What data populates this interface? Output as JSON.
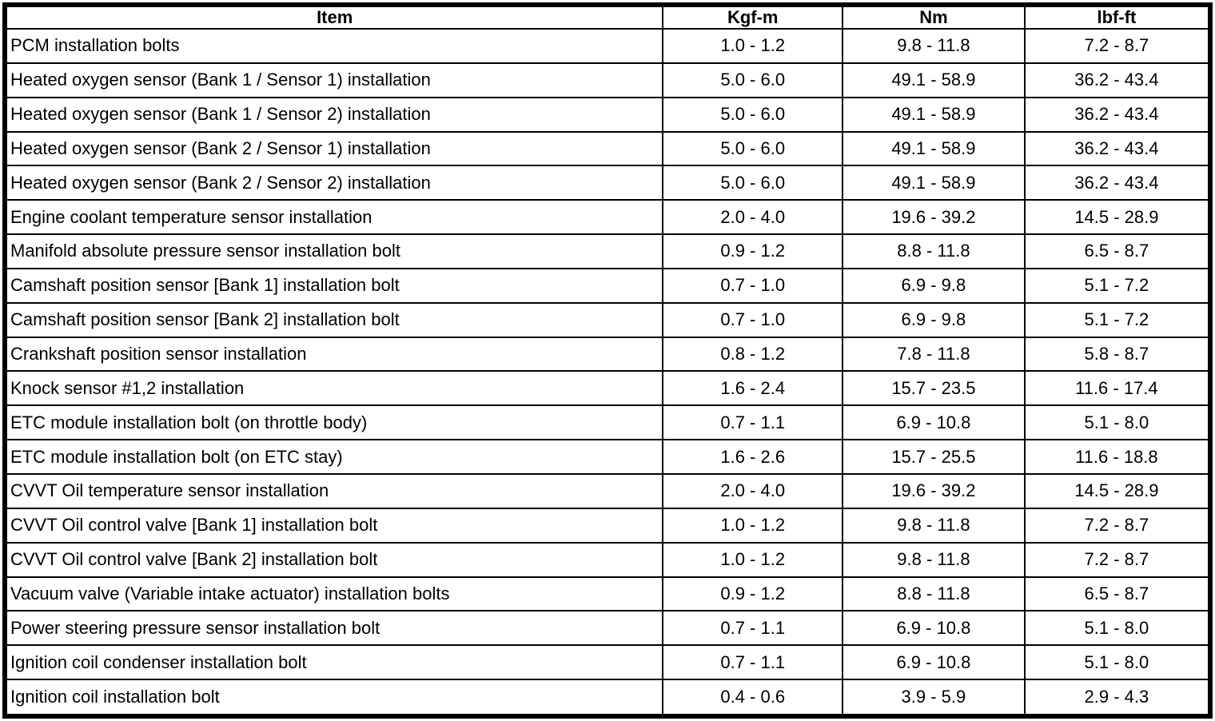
{
  "table": {
    "headers": [
      "Item",
      "Kgf-m",
      "Nm",
      "lbf-ft"
    ],
    "rows": [
      [
        "PCM installation bolts",
        "1.0 - 1.2",
        "9.8 - 11.8",
        "7.2 - 8.7"
      ],
      [
        "Heated oxygen sensor (Bank 1 / Sensor 1) installation",
        "5.0 - 6.0",
        "49.1 - 58.9",
        "36.2 - 43.4"
      ],
      [
        "Heated oxygen sensor (Bank 1 / Sensor 2) installation",
        "5.0 - 6.0",
        "49.1 - 58.9",
        "36.2 - 43.4"
      ],
      [
        "Heated oxygen sensor (Bank 2 / Sensor 1) installation",
        "5.0 - 6.0",
        "49.1 - 58.9",
        "36.2 - 43.4"
      ],
      [
        "Heated oxygen sensor (Bank 2 / Sensor 2) installation",
        "5.0 - 6.0",
        "49.1 - 58.9",
        "36.2 - 43.4"
      ],
      [
        "Engine coolant temperature sensor installation",
        "2.0 - 4.0",
        "19.6 - 39.2",
        "14.5 - 28.9"
      ],
      [
        "Manifold absolute pressure sensor installation bolt",
        "0.9 - 1.2",
        "8.8 - 11.8",
        "6.5 - 8.7"
      ],
      [
        "Camshaft position sensor [Bank 1] installation bolt",
        "0.7 - 1.0",
        "6.9 - 9.8",
        "5.1 - 7.2"
      ],
      [
        "Camshaft position sensor [Bank 2] installation bolt",
        "0.7 - 1.0",
        "6.9 - 9.8",
        "5.1 - 7.2"
      ],
      [
        "Crankshaft position sensor installation",
        "0.8 - 1.2",
        "7.8 - 11.8",
        "5.8 - 8.7"
      ],
      [
        "Knock sensor #1,2 installation",
        "1.6 - 2.4",
        "15.7 - 23.5",
        "11.6 - 17.4"
      ],
      [
        "ETC module installation bolt (on throttle body)",
        "0.7 - 1.1",
        "6.9 - 10.8",
        "5.1 - 8.0"
      ],
      [
        "ETC module installation bolt (on ETC stay)",
        "1.6 - 2.6",
        "15.7 - 25.5",
        "11.6 - 18.8"
      ],
      [
        "CVVT Oil temperature sensor installation",
        "2.0 - 4.0",
        "19.6 - 39.2",
        "14.5 - 28.9"
      ],
      [
        "CVVT Oil control valve [Bank 1] installation bolt",
        "1.0 - 1.2",
        "9.8 - 11.8",
        "7.2 - 8.7"
      ],
      [
        "CVVT Oil control valve [Bank 2] installation bolt",
        "1.0 - 1.2",
        "9.8 - 11.8",
        "7.2 - 8.7"
      ],
      [
        "Vacuum valve (Variable intake actuator) installation bolts",
        "0.9 - 1.2",
        "8.8 - 11.8",
        "6.5 - 8.7"
      ],
      [
        "Power steering pressure sensor installation bolt",
        "0.7 - 1.1",
        "6.9 - 10.8",
        "5.1 - 8.0"
      ],
      [
        "Ignition coil condenser installation bolt",
        "0.7 - 1.1",
        "6.9 - 10.8",
        "5.1 - 8.0"
      ],
      [
        "Ignition coil installation bolt",
        "0.4 - 0.6",
        "3.9 - 5.9",
        "2.9 - 4.3"
      ]
    ]
  }
}
